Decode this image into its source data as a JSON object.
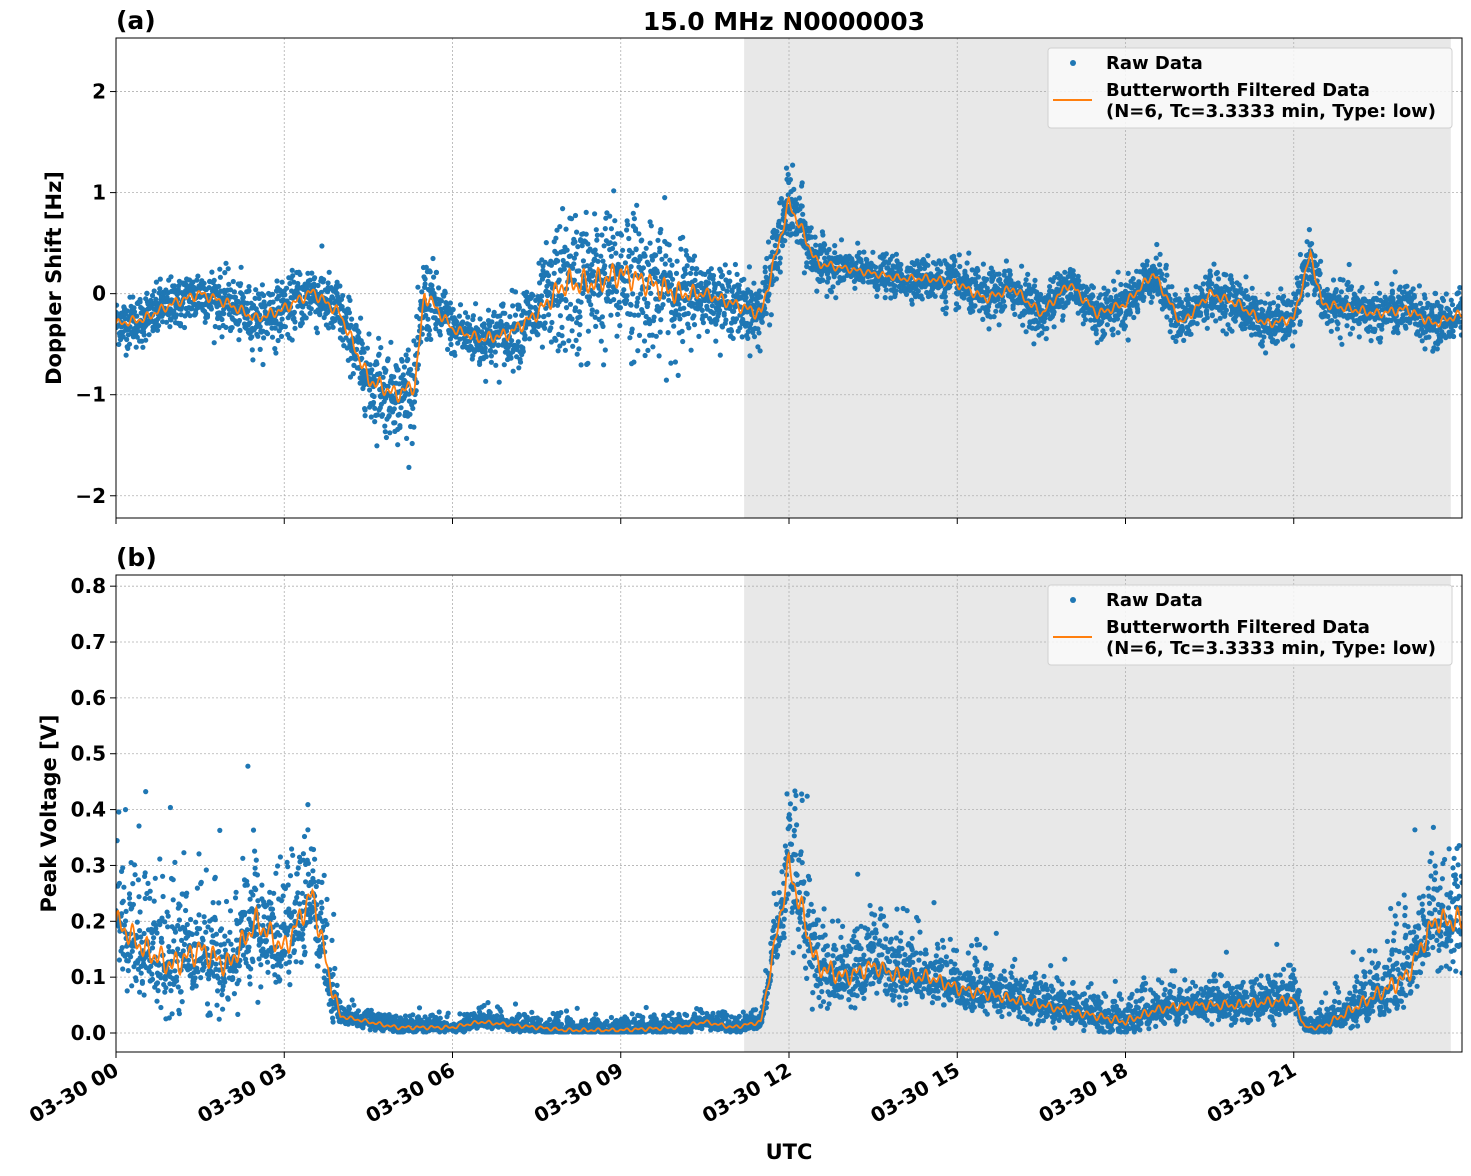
{
  "chart_data": {
    "title": "15.0 MHz N0000003",
    "xlabel": "UTC",
    "xtick_labels": [
      "03-30 00",
      "03-30 03",
      "03-30 06",
      "03-30 09",
      "03-30 12",
      "03-30 15",
      "03-30 18",
      "03-30 21"
    ],
    "xlim": [
      "03-30 00:00",
      "03-31 00:00"
    ],
    "shaded_span": [
      "03-30 11:12",
      "03-30 23:48"
    ],
    "grid": true,
    "colors": {
      "raw": "#1f77b4",
      "filtered": "#ff7f0e",
      "shade": "#e8e8e8"
    },
    "legend": {
      "placement": "top-right",
      "raw_label": "Raw Data",
      "filtered_label_1": "Butterworth Filtered Data",
      "filtered_label_2": "(N=6, Tc=3.3333 min, Type: low)"
    },
    "panels": [
      {
        "label": "(a)",
        "type": "scatter+line",
        "ylabel": "Doppler Shift [Hz]",
        "ylim": [
          -2.22,
          2.53
        ],
        "yticks": [
          -2,
          -1,
          0,
          1,
          2
        ],
        "ytick_labels": [
          "−2",
          "−1",
          "0",
          "1",
          "2"
        ],
        "filtered": [
          [
            "00:00",
            -0.3
          ],
          [
            "00:30",
            -0.25
          ],
          [
            "01:00",
            -0.1
          ],
          [
            "01:30",
            0.0
          ],
          [
            "02:00",
            -0.1
          ],
          [
            "02:30",
            -0.25
          ],
          [
            "03:00",
            -0.15
          ],
          [
            "03:30",
            0.02
          ],
          [
            "04:00",
            -0.2
          ],
          [
            "04:30",
            -0.85
          ],
          [
            "05:00",
            -1.0
          ],
          [
            "05:20",
            -0.9
          ],
          [
            "05:30",
            0.0
          ],
          [
            "06:00",
            -0.35
          ],
          [
            "06:30",
            -0.45
          ],
          [
            "07:00",
            -0.4
          ],
          [
            "07:30",
            -0.2
          ],
          [
            "08:00",
            0.1
          ],
          [
            "08:30",
            0.1
          ],
          [
            "09:00",
            0.2
          ],
          [
            "09:30",
            0.1
          ],
          [
            "10:00",
            0.0
          ],
          [
            "10:30",
            0.0
          ],
          [
            "11:00",
            -0.1
          ],
          [
            "11:30",
            -0.2
          ],
          [
            "12:00",
            0.9
          ],
          [
            "12:30",
            0.3
          ],
          [
            "13:00",
            0.25
          ],
          [
            "13:30",
            0.2
          ],
          [
            "14:00",
            0.15
          ],
          [
            "14:30",
            0.15
          ],
          [
            "15:00",
            0.1
          ],
          [
            "15:30",
            -0.05
          ],
          [
            "16:00",
            0.05
          ],
          [
            "16:30",
            -0.2
          ],
          [
            "17:00",
            0.1
          ],
          [
            "17:30",
            -0.2
          ],
          [
            "18:00",
            -0.1
          ],
          [
            "18:30",
            0.2
          ],
          [
            "19:00",
            -0.3
          ],
          [
            "19:30",
            0.0
          ],
          [
            "20:00",
            -0.1
          ],
          [
            "20:30",
            -0.3
          ],
          [
            "21:00",
            -0.25
          ],
          [
            "21:18",
            0.4
          ],
          [
            "21:30",
            -0.1
          ],
          [
            "22:00",
            -0.15
          ],
          [
            "22:30",
            -0.2
          ],
          [
            "23:00",
            -0.15
          ],
          [
            "23:30",
            -0.3
          ],
          [
            "24:00",
            -0.2
          ]
        ],
        "raw_spread": [
          [
            "00:00",
            0.2
          ],
          [
            "04:00",
            0.25
          ],
          [
            "04:30",
            0.35
          ],
          [
            "05:30",
            0.35
          ],
          [
            "06:00",
            0.2
          ],
          [
            "07:30",
            0.3
          ],
          [
            "08:00",
            0.6
          ],
          [
            "10:00",
            0.5
          ],
          [
            "10:30",
            0.25
          ],
          [
            "12:00",
            0.3
          ],
          [
            "13:00",
            0.15
          ],
          [
            "14:00",
            0.15
          ],
          [
            "15:00",
            0.2
          ],
          [
            "24:00",
            0.2
          ]
        ]
      },
      {
        "label": "(b)",
        "type": "scatter+line",
        "ylabel": "Peak Voltage [V]",
        "ylim": [
          -0.034,
          0.82
        ],
        "yticks": [
          0.0,
          0.1,
          0.2,
          0.3,
          0.4,
          0.5,
          0.6,
          0.7,
          0.8
        ],
        "ytick_labels": [
          "0.0",
          "0.1",
          "0.2",
          "0.3",
          "0.4",
          "0.5",
          "0.6",
          "0.7",
          "0.8"
        ],
        "filtered": [
          [
            "00:00",
            0.2
          ],
          [
            "00:30",
            0.15
          ],
          [
            "01:00",
            0.12
          ],
          [
            "01:30",
            0.15
          ],
          [
            "02:00",
            0.12
          ],
          [
            "02:30",
            0.2
          ],
          [
            "03:00",
            0.15
          ],
          [
            "03:30",
            0.25
          ],
          [
            "03:48",
            0.1
          ],
          [
            "04:00",
            0.03
          ],
          [
            "04:30",
            0.02
          ],
          [
            "05:00",
            0.01
          ],
          [
            "06:00",
            0.01
          ],
          [
            "06:30",
            0.02
          ],
          [
            "07:00",
            0.015
          ],
          [
            "07:30",
            0.01
          ],
          [
            "08:00",
            0.005
          ],
          [
            "09:00",
            0.005
          ],
          [
            "10:00",
            0.01
          ],
          [
            "10:30",
            0.02
          ],
          [
            "11:00",
            0.01
          ],
          [
            "11:30",
            0.02
          ],
          [
            "12:00",
            0.3
          ],
          [
            "12:30",
            0.12
          ],
          [
            "13:00",
            0.1
          ],
          [
            "13:30",
            0.12
          ],
          [
            "14:00",
            0.1
          ],
          [
            "14:30",
            0.1
          ],
          [
            "15:00",
            0.08
          ],
          [
            "16:00",
            0.06
          ],
          [
            "17:00",
            0.04
          ],
          [
            "17:30",
            0.03
          ],
          [
            "18:00",
            0.02
          ],
          [
            "18:30",
            0.04
          ],
          [
            "19:00",
            0.05
          ],
          [
            "20:00",
            0.05
          ],
          [
            "21:00",
            0.06
          ],
          [
            "21:12",
            0.01
          ],
          [
            "21:30",
            0.01
          ],
          [
            "22:00",
            0.04
          ],
          [
            "22:30",
            0.07
          ],
          [
            "23:00",
            0.1
          ],
          [
            "23:30",
            0.2
          ],
          [
            "24:00",
            0.2
          ]
        ],
        "raw_spread": [
          [
            "00:00",
            0.1
          ],
          [
            "03:48",
            0.1
          ],
          [
            "04:00",
            0.015
          ],
          [
            "11:30",
            0.015
          ],
          [
            "12:00",
            0.12
          ],
          [
            "13:00",
            0.07
          ],
          [
            "15:00",
            0.05
          ],
          [
            "17:00",
            0.03
          ],
          [
            "21:00",
            0.04
          ],
          [
            "21:12",
            0.01
          ],
          [
            "22:00",
            0.04
          ],
          [
            "23:00",
            0.08
          ],
          [
            "24:00",
            0.1
          ]
        ]
      }
    ]
  }
}
